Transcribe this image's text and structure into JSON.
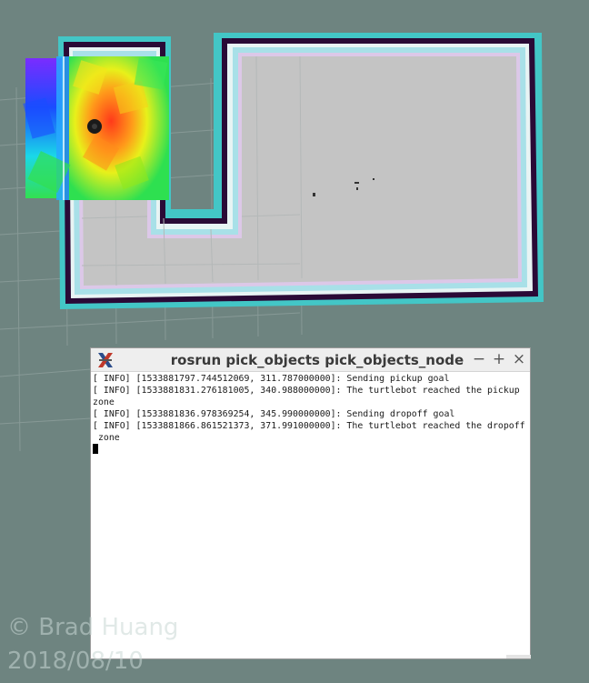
{
  "terminal": {
    "title": "rosrun pick_objects pick_objects_node",
    "minimize_label": "−",
    "maximize_label": "+",
    "close_label": "×",
    "log_lines": [
      "[ INFO] [1533881797.744512069, 311.787000000]: Sending pickup goal",
      "[ INFO] [1533881831.276181005, 340.988000000]: The turtlebot reached the pickup",
      "zone",
      "[ INFO] [1533881836.978369254, 345.990000000]: Sending dropoff goal",
      "[ INFO] [1533881866.861521373, 371.991000000]: The turtlebot reached the dropoff",
      " zone"
    ]
  },
  "watermark": {
    "author": "© Brad Huang",
    "date": "2018/08/10"
  },
  "colors": {
    "background": "#6e8480",
    "grid": "#8a9c99",
    "map_free": "#c4c4c4",
    "map_wall": "#2a0a36",
    "inflation": "#43c6c6",
    "robot": "#1a1a1a"
  },
  "icons": {
    "app": "x-terminal-icon",
    "robot": "turtlebot-marker-icon"
  }
}
